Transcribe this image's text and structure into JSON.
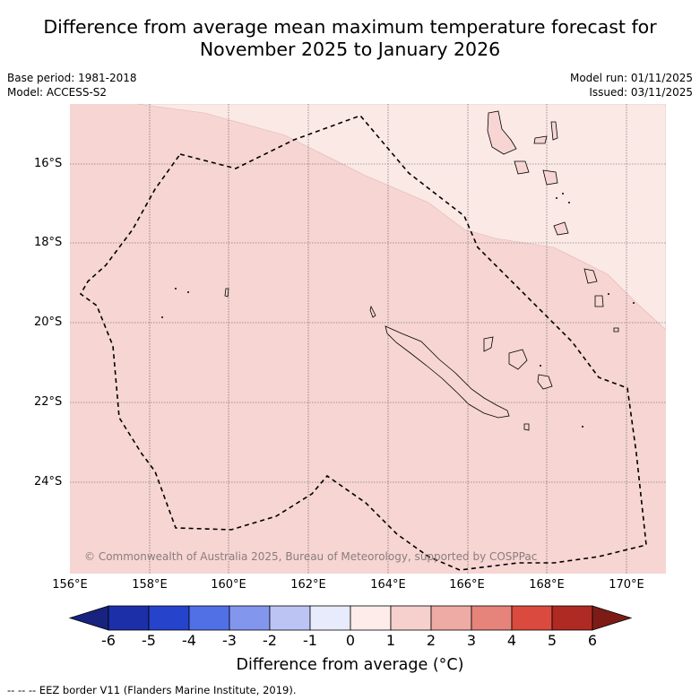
{
  "title": {
    "line1": "Difference from average mean maximum temperature forecast for",
    "line2": "November 2025 to January 2026"
  },
  "meta": {
    "base_period": "Base period: 1981-2018",
    "model": "Model: ACCESS-S2",
    "model_run": "Model run: 01/11/2025",
    "issued": "Issued: 03/11/2025"
  },
  "axes": {
    "latitudes": [
      "16°S",
      "18°S",
      "20°S",
      "22°S",
      "24°S"
    ],
    "longitudes": [
      "156°E",
      "158°E",
      "160°E",
      "162°E",
      "164°E",
      "166°E",
      "168°E",
      "170°E"
    ]
  },
  "map": {
    "copyright": "© Commonwealth of Australia 2025, Bureau of Meteorology, supported by COSPPac",
    "fill_main": "#f6d5d2",
    "fill_light": "#fbe9e6"
  },
  "colorbar": {
    "ticks": [
      "-6",
      "-5",
      "-4",
      "-3",
      "-2",
      "-1",
      "0",
      "1",
      "2",
      "3",
      "4",
      "5",
      "6"
    ],
    "colors": [
      "#1d2fa8",
      "#2643cc",
      "#5270e6",
      "#8296ed",
      "#bcc4f4",
      "#e8ebfb",
      "#fdecea",
      "#f6d0cd",
      "#eeaaa4",
      "#e6837b",
      "#da4a3e",
      "#ae2a22"
    ],
    "low_color": "#17237e",
    "high_color": "#7d1c16",
    "title": "Difference from average (°C)"
  },
  "legend": {
    "eez_note": "-- -- -- EEZ border V11 (Flanders Marine Institute, 2019)."
  }
}
